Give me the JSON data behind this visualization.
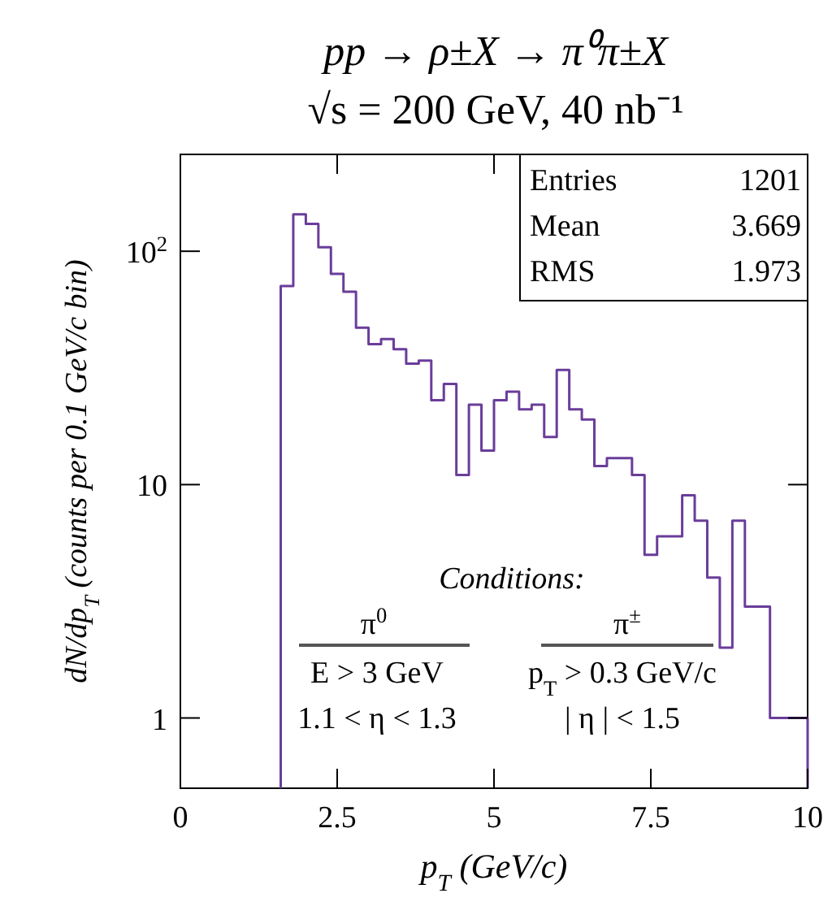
{
  "chart_data": {
    "type": "histogram",
    "title": "pp → ρ±X → π⁰π±X",
    "subtitle": "√s = 200 GeV,   40 nb⁻¹",
    "xlabel": "p$_{T}$ (GeV/c)",
    "ylabel": "dN/dp$_{T}$   (counts per 0.1 GeV/c bin)",
    "bins": [
      1.6,
      1.8,
      2.0,
      2.2,
      2.4,
      2.6,
      2.8,
      3.0,
      3.2,
      3.4,
      3.6,
      3.8,
      4.0,
      4.2,
      4.4,
      4.6,
      4.8,
      5.0,
      5.2,
      5.4,
      5.6,
      5.8,
      6.0,
      6.2,
      6.4,
      6.6,
      6.8,
      7.0,
      7.2,
      7.4,
      7.6,
      7.8,
      8.0,
      8.2,
      8.4,
      8.6,
      8.8,
      9.0,
      9.2,
      9.4,
      9.6,
      9.8,
      10.0
    ],
    "values": [
      71,
      144,
      131,
      104,
      80,
      67,
      47,
      40,
      42,
      38,
      33,
      34,
      23,
      27,
      11,
      22,
      14,
      23,
      25,
      21,
      22,
      16,
      31,
      21,
      19,
      12,
      13,
      13,
      11,
      5,
      6,
      6,
      9,
      7,
      4,
      2,
      7,
      3,
      3,
      1,
      1,
      1
    ],
    "color": "#6a3d9a",
    "log": "y",
    "xlim": [
      0,
      10
    ],
    "xticks": [
      0,
      2.5,
      5,
      7.5,
      10
    ],
    "ylim": [
      0.5,
      260
    ],
    "yticks": [
      1,
      10,
      {
        "value": 100,
        "label": "10$^{2}$"
      }
    ],
    "grid": false,
    "annotations": [
      "Entries",
      "1201",
      "Mean",
      "3.669",
      "RMS",
      "1.973",
      "Conditions:",
      "π$^{0}$",
      "E > 3 GeV",
      "1.1 < η < 1.3",
      "π$^{±}$",
      "p$_{T}$ > 0.3 GeV/c",
      "| η | < 1.5"
    ]
  }
}
